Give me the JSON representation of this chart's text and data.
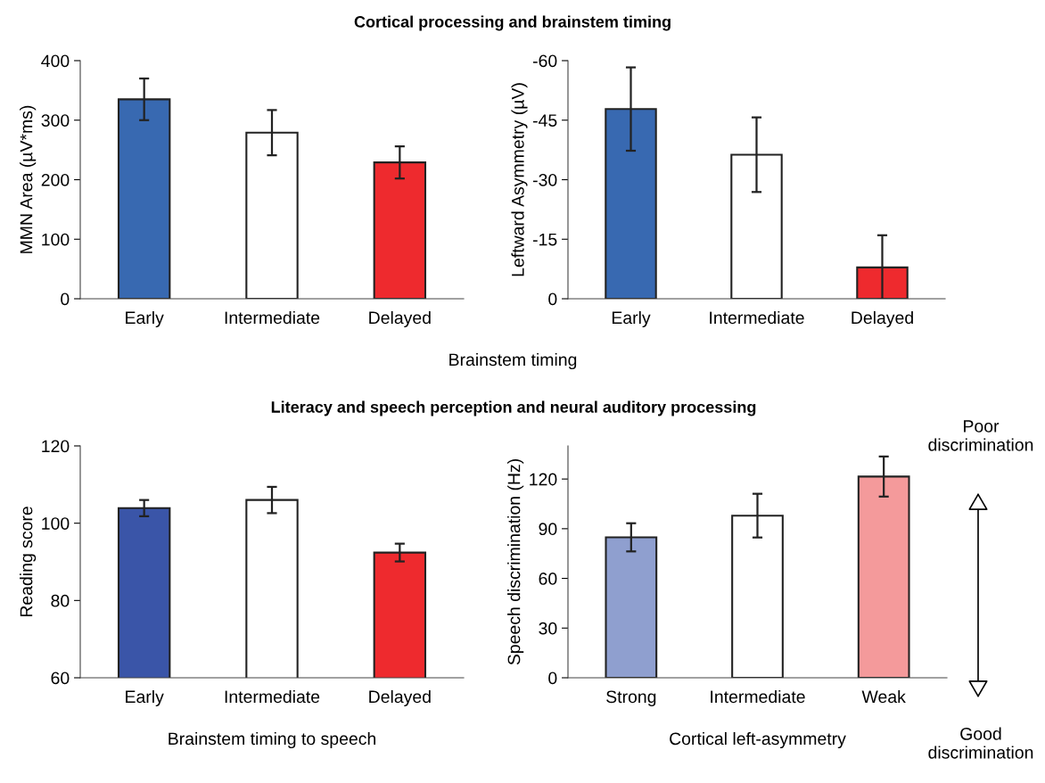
{
  "chart_data": [
    {
      "type": "bar",
      "title": "Cortical processing and brainstem timing",
      "xlabel": "Brainstem timing",
      "ylabel": "MMN Area (µV*ms)",
      "categories": [
        "Early",
        "Intermediate",
        "Delayed"
      ],
      "values": [
        335,
        279,
        229
      ],
      "errors": [
        35,
        38,
        27
      ],
      "colors": [
        "#3869b1",
        "#ffffff",
        "#ee2a2e"
      ],
      "ylim": [
        0,
        400
      ],
      "yticks": [
        0,
        100,
        200,
        300,
        400
      ],
      "grid": false
    },
    {
      "type": "bar",
      "ylabel": "Leftward Asymmetry (µV)",
      "categories": [
        "Early",
        "Intermediate",
        "Delayed"
      ],
      "values": [
        -47.8,
        -36.3,
        -7.9
      ],
      "errors": [
        10.5,
        9.4,
        8.1
      ],
      "colors": [
        "#3869b1",
        "#ffffff",
        "#ee2a2e"
      ],
      "ylim": [
        0,
        -60
      ],
      "yticks": [
        0,
        -15,
        -30,
        -45,
        -60
      ],
      "grid": false
    },
    {
      "type": "bar",
      "title": "Literacy and speech perception and neural auditory processing",
      "xlabel": "Brainstem timing to speech",
      "ylabel": "Reading score",
      "categories": [
        "Early",
        "Intermediate",
        "Delayed"
      ],
      "values": [
        103.9,
        106.0,
        92.4
      ],
      "errors": [
        2.1,
        3.4,
        2.3
      ],
      "colors": [
        "#3a55a8",
        "#ffffff",
        "#ee2a2e"
      ],
      "ylim": [
        60,
        120
      ],
      "yticks": [
        60,
        80,
        100,
        120
      ],
      "grid": false
    },
    {
      "type": "bar",
      "xlabel": "Cortical left-asymmetry",
      "ylabel": "Speech discrimination (Hz)",
      "categories": [
        "Strong",
        "Intermediate",
        "Weak"
      ],
      "values": [
        84.8,
        97.9,
        121.5
      ],
      "errors": [
        8.5,
        13.2,
        12.1
      ],
      "colors": [
        "#8f9fcf",
        "#ffffff",
        "#f49a9b"
      ],
      "ylim": [
        0,
        140
      ],
      "yticks": [
        0,
        30,
        60,
        90,
        120
      ],
      "grid": false,
      "annotations": [
        "Poor\ndiscrimination",
        "Good\ndiscrimination"
      ]
    }
  ]
}
